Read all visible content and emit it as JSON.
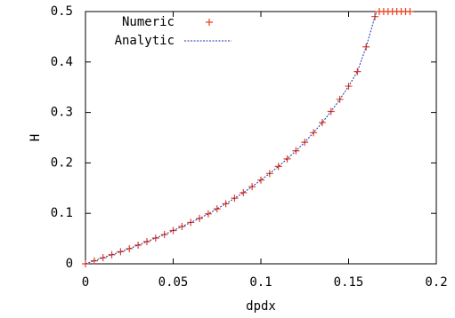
{
  "chart_data": {
    "type": "scatter-line",
    "xlabel": "dpdx",
    "ylabel": "H",
    "xlim": [
      0,
      0.2
    ],
    "ylim": [
      0,
      0.5
    ],
    "xticks": [
      0,
      0.05,
      0.1,
      0.15,
      0.2
    ],
    "yticks": [
      0,
      0.1,
      0.2,
      0.3,
      0.4,
      0.5
    ],
    "legend": "top left",
    "series": [
      {
        "name": "Numeric",
        "color": "#e8401c",
        "style": "points",
        "x": [
          0,
          0.005,
          0.01,
          0.015,
          0.02,
          0.025,
          0.03,
          0.035,
          0.04,
          0.045,
          0.05,
          0.055,
          0.06,
          0.065,
          0.07,
          0.075,
          0.08,
          0.085,
          0.09,
          0.095,
          0.1,
          0.105,
          0.11,
          0.115,
          0.12,
          0.125,
          0.13,
          0.135,
          0.14,
          0.145,
          0.15,
          0.155,
          0.16,
          0.165,
          0.1675,
          0.17,
          0.1725,
          0.175,
          0.1775,
          0.18,
          0.1825,
          0.185
        ],
        "values": [
          0,
          0.006,
          0.012,
          0.018,
          0.024,
          0.03,
          0.037,
          0.044,
          0.051,
          0.058,
          0.066,
          0.074,
          0.082,
          0.09,
          0.099,
          0.109,
          0.119,
          0.13,
          0.141,
          0.153,
          0.166,
          0.179,
          0.193,
          0.208,
          0.224,
          0.241,
          0.26,
          0.28,
          0.302,
          0.326,
          0.352,
          0.381,
          0.43,
          0.49,
          0.5,
          0.5,
          0.5,
          0.5,
          0.5,
          0.5,
          0.5,
          0.5
        ]
      },
      {
        "name": "Analytic",
        "color": "#1a2fb0",
        "style": "dashed-line",
        "x": [
          0,
          0.005,
          0.01,
          0.015,
          0.02,
          0.025,
          0.03,
          0.035,
          0.04,
          0.045,
          0.05,
          0.055,
          0.06,
          0.065,
          0.07,
          0.075,
          0.08,
          0.085,
          0.09,
          0.095,
          0.1,
          0.105,
          0.11,
          0.115,
          0.12,
          0.125,
          0.13,
          0.135,
          0.14,
          0.145,
          0.15,
          0.155,
          0.16,
          0.165,
          0.166
        ],
        "values": [
          0,
          0.006,
          0.012,
          0.018,
          0.024,
          0.03,
          0.037,
          0.044,
          0.051,
          0.058,
          0.066,
          0.074,
          0.082,
          0.09,
          0.099,
          0.109,
          0.119,
          0.13,
          0.141,
          0.153,
          0.166,
          0.179,
          0.193,
          0.208,
          0.224,
          0.241,
          0.26,
          0.28,
          0.302,
          0.326,
          0.352,
          0.381,
          0.43,
          0.49,
          0.5
        ]
      }
    ]
  }
}
